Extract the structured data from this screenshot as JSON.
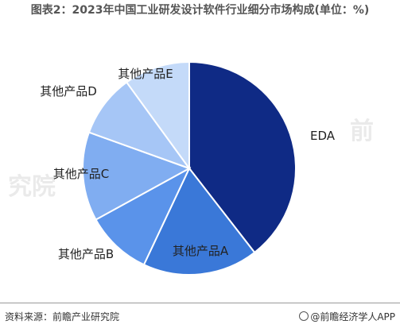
{
  "title": "图表2：2023年中国工业研发设计软件行业细分市场构成(单位：%)",
  "chart_data": {
    "type": "pie",
    "title": "图表2：2023年中国工业研发设计软件行业细分市场构成(单位：%)",
    "slices": [
      {
        "label": "EDA",
        "value": 39.5,
        "color": "#0f2a85"
      },
      {
        "label": "其他产品A",
        "value": 17.5,
        "color": "#3a78d8"
      },
      {
        "label": "其他产品B",
        "value": 10.0,
        "color": "#5a93ea"
      },
      {
        "label": "其他产品C",
        "value": 13.5,
        "color": "#80adf1"
      },
      {
        "label": "其他产品D",
        "value": 9.5,
        "color": "#a6c6f6"
      },
      {
        "label": "其他产品E",
        "value": 10.0,
        "color": "#c4daf9"
      }
    ],
    "start": "12 o'clock, clockwise"
  },
  "footer": {
    "source": "资料来源：前瞻产业研究院",
    "brand": "@前瞻经济学人APP"
  }
}
